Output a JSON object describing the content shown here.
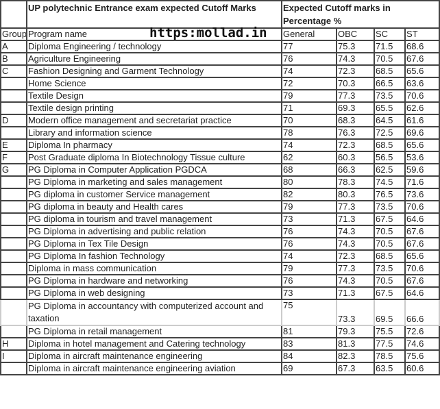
{
  "title": "UP polytechnic Entrance exam expected Cutoff Marks",
  "marks_header": "Expected Cutoff marks in Percentage %",
  "watermark": "https:mollad.in",
  "columns": [
    "Group",
    "Program name",
    "General",
    "OBC",
    "SC",
    "ST"
  ],
  "rows": [
    {
      "group": "A",
      "program": "Diploma Engineering / technology",
      "general": "77",
      "obc": "75.3",
      "sc": "71.5",
      "st": "68.6"
    },
    {
      "group": "B",
      "program": "Agriculture Engineering",
      "general": "76",
      "obc": "74.3",
      "sc": "70.5",
      "st": "67.6"
    },
    {
      "group": "C",
      "program": "Fashion Designing and Garment Technology",
      "general": "74",
      "obc": "72.3",
      "sc": "68.5",
      "st": "65.6"
    },
    {
      "group": "",
      "program": "Home Science",
      "general": "72",
      "obc": "70.3",
      "sc": "66.5",
      "st": "63.6"
    },
    {
      "group": "",
      "program": "Textile Design",
      "general": "79",
      "obc": "77.3",
      "sc": "73.5",
      "st": "70.6"
    },
    {
      "group": "",
      "program": "Textile design printing",
      "general": "71",
      "obc": "69.3",
      "sc": "65.5",
      "st": "62.6"
    },
    {
      "group": "D",
      "program": "Modern office management and secretariat practice",
      "general": "70",
      "obc": "68.3",
      "sc": "64.5",
      "st": "61.6"
    },
    {
      "group": "",
      "program": "Library and information science",
      "general": "78",
      "obc": "76.3",
      "sc": "72.5",
      "st": "69.6"
    },
    {
      "group": "E",
      "program": "Diploma In pharmacy",
      "general": "74",
      "obc": "72.3",
      "sc": "68.5",
      "st": "65.6"
    },
    {
      "group": "F",
      "program": "Post Graduate diploma In Biotechnology Tissue culture",
      "general": "62",
      "obc": "60.3",
      "sc": "56.5",
      "st": "53.6"
    },
    {
      "group": "G",
      "program": "PG Diploma in Computer Application PGDCA",
      "general": "68",
      "obc": "66.3",
      "sc": "62.5",
      "st": "59.6"
    },
    {
      "group": "",
      "program": "PG Diploma in marketing and sales management",
      "general": "80",
      "obc": "78.3",
      "sc": "74.5",
      "st": "71.6"
    },
    {
      "group": "",
      "program": "PG diploma in customer Service management",
      "general": "82",
      "obc": "80.3",
      "sc": "76.5",
      "st": "73.6"
    },
    {
      "group": "",
      "program": "PG diploma in beauty and Health cares",
      "general": "79",
      "obc": "77.3",
      "sc": "73.5",
      "st": "70.6"
    },
    {
      "group": "",
      "program": "PG diploma in tourism and travel  management",
      "general": "73",
      "obc": "71.3",
      "sc": "67.5",
      "st": "64.6"
    },
    {
      "group": "",
      "program": "PG Diploma in advertising and public relation",
      "general": "76",
      "obc": "74.3",
      "sc": "70.5",
      "st": "67.6"
    },
    {
      "group": "",
      "program": "PG  Diploma in Tex Tile Design",
      "general": "76",
      "obc": "74.3",
      "sc": "70.5",
      "st": "67.6"
    },
    {
      "group": "",
      "program": "PG Diploma In fashion Technology",
      "general": "74",
      "obc": "72.3",
      "sc": "68.5",
      "st": "65.6"
    },
    {
      "group": "",
      "program": "Diploma in mass communication",
      "general": "79",
      "obc": "77.3",
      "sc": "73.5",
      "st": "70.6"
    },
    {
      "group": "",
      "program": "PG Diploma in hardware and networking",
      "general": "76",
      "obc": "74.3",
      "sc": "70.5",
      "st": "67.6"
    },
    {
      "group": "",
      "program": "PG Diploma in web designing",
      "general": "73",
      "obc": "71.3",
      "sc": "67.5",
      "st": "64.6"
    },
    {
      "group": "",
      "program": "PG Diploma in accountancy with computerized  account and taxation",
      "general": "75",
      "obc": "73.3",
      "sc": "69.5",
      "st": "66.6"
    },
    {
      "group": "",
      "program": "PG Diploma in retail management",
      "general": "81",
      "obc": "79.3",
      "sc": "75.5",
      "st": "72.6"
    },
    {
      "group": "H",
      "program": "Diploma in hotel management and Catering technology",
      "general": "83",
      "obc": "81.3",
      "sc": "77.5",
      "st": "74.6"
    },
    {
      "group": "I",
      "program": "Diploma in aircraft maintenance engineering",
      "general": "84",
      "obc": "82.3",
      "sc": "78.5",
      "st": "75.6"
    },
    {
      "group": "",
      "program": "Diploma in aircraft maintenance engineering aviation",
      "general": "69",
      "obc": "67.3",
      "sc": "63.5",
      "st": "60.6"
    }
  ]
}
